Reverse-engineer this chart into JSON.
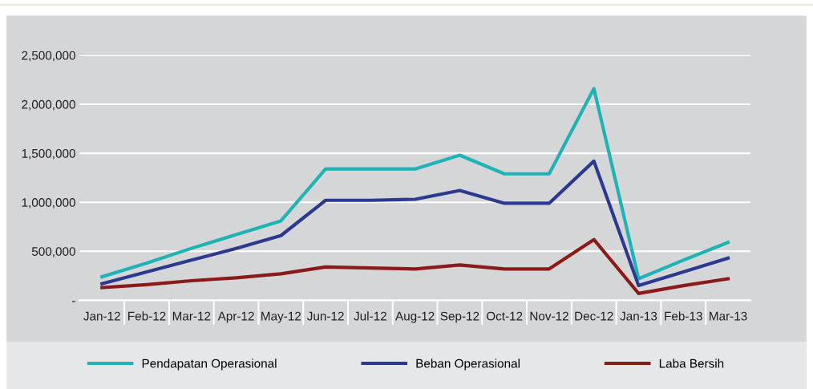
{
  "chart_data": {
    "type": "line",
    "categories": [
      "Jan-12",
      "Feb-12",
      "Mar-12",
      "Apr-12",
      "May-12",
      "Jun-12",
      "Jul-12",
      "Aug-12",
      "Sep-12",
      "Oct-12",
      "Nov-12",
      "Dec-12",
      "Jan-13",
      "Feb-13",
      "Mar-13"
    ],
    "series": [
      {
        "name": "Pendapatan Operasional",
        "color": "#1fb3b6",
        "values": [
          240000,
          380000,
          530000,
          670000,
          810000,
          1340000,
          1340000,
          1340000,
          1480000,
          1290000,
          1290000,
          2160000,
          220000,
          410000,
          590000
        ]
      },
      {
        "name": "Beban Operasional",
        "color": "#2b3990",
        "values": [
          170000,
          290000,
          410000,
          530000,
          660000,
          1020000,
          1020000,
          1030000,
          1120000,
          990000,
          990000,
          1420000,
          150000,
          290000,
          430000
        ]
      },
      {
        "name": "Laba Bersih",
        "color": "#8b1a1a",
        "values": [
          130000,
          160000,
          200000,
          230000,
          270000,
          340000,
          330000,
          320000,
          360000,
          320000,
          320000,
          620000,
          70000,
          150000,
          220000
        ]
      }
    ],
    "ylim": [
      0,
      2500000
    ],
    "yticks": [
      {
        "value": 0,
        "label": "-"
      },
      {
        "value": 500000,
        "label": "500,000"
      },
      {
        "value": 1000000,
        "label": "1,000,000"
      },
      {
        "value": 1500000,
        "label": "1,500,000"
      },
      {
        "value": 2000000,
        "label": "2,000,000"
      },
      {
        "value": 2500000,
        "label": "2,500,000"
      }
    ],
    "grid": "y",
    "legend": "bottom",
    "marker": "none",
    "line_style": "solid"
  }
}
